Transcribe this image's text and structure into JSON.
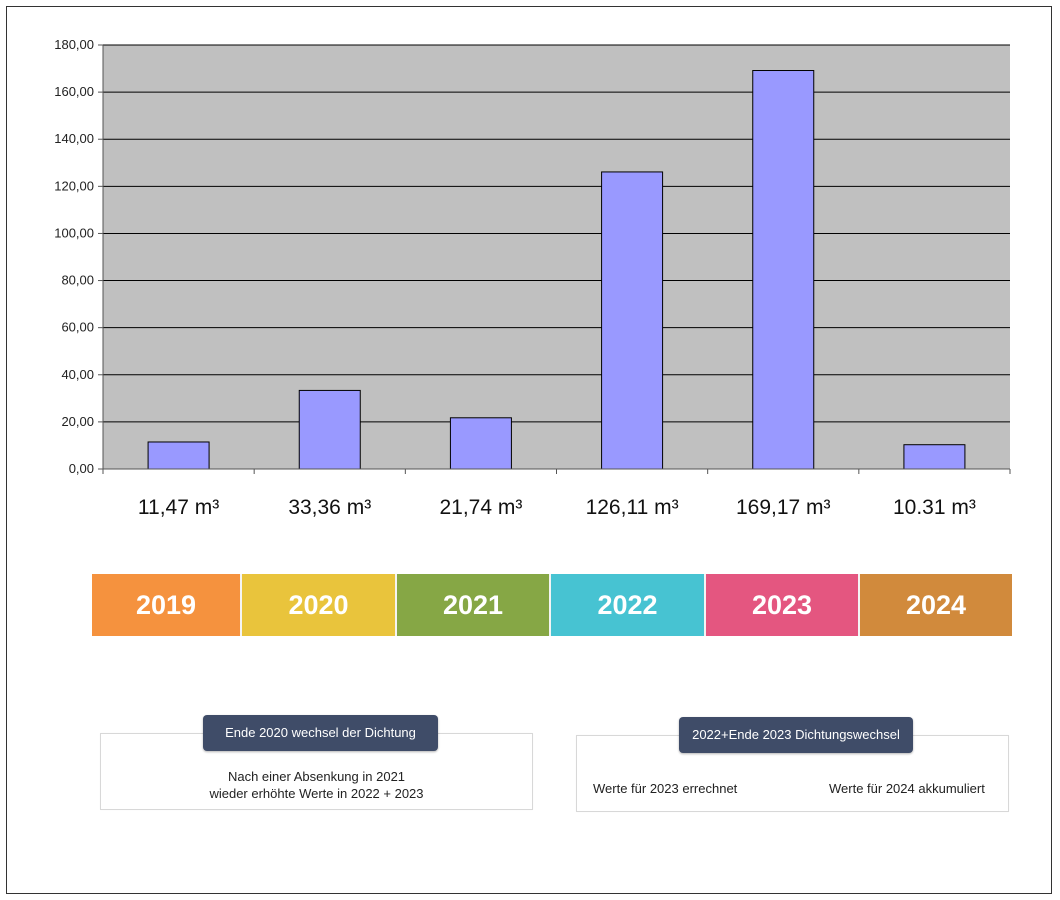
{
  "chart_data": {
    "type": "bar",
    "categories": [
      "2019",
      "2020",
      "2021",
      "2022",
      "2023",
      "2024"
    ],
    "values": [
      11.47,
      33.36,
      21.74,
      126.11,
      169.17,
      10.31
    ],
    "value_labels": [
      "11,47 m³",
      "33,36 m³",
      "21,74 m³",
      "126,11 m³",
      "169,17 m³",
      "10.31 m³"
    ],
    "yticks": [
      "0,00",
      "20,00",
      "40,00",
      "60,00",
      "80,00",
      "100,00",
      "120,00",
      "140,00",
      "160,00",
      "180,00"
    ],
    "ylim": [
      0,
      180
    ],
    "grid": true,
    "colors": {
      "bar": "#9999ff",
      "plot_bg": "#c0c0c0",
      "grid": "#000000"
    }
  },
  "year_bar": [
    {
      "label": "2019",
      "color": "#f5923e"
    },
    {
      "label": "2020",
      "color": "#e9c43c"
    },
    {
      "label": "2021",
      "color": "#86a745"
    },
    {
      "label": "2022",
      "color": "#47c3d2"
    },
    {
      "label": "2023",
      "color": "#e45680"
    },
    {
      "label": "2024",
      "color": "#d18a3c"
    }
  ],
  "notes": {
    "left": {
      "title": "Ende 2020 wechsel der Dichtung",
      "line1": "Nach einer Absenkung in 2021",
      "line2": "wieder erhöhte Werte in 2022 + 2023"
    },
    "right": {
      "title": "2022+Ende 2023 Dichtungswechsel",
      "text_left": "Werte für 2023 errechnet",
      "text_right": "Werte für 2024 akkumuliert"
    }
  }
}
